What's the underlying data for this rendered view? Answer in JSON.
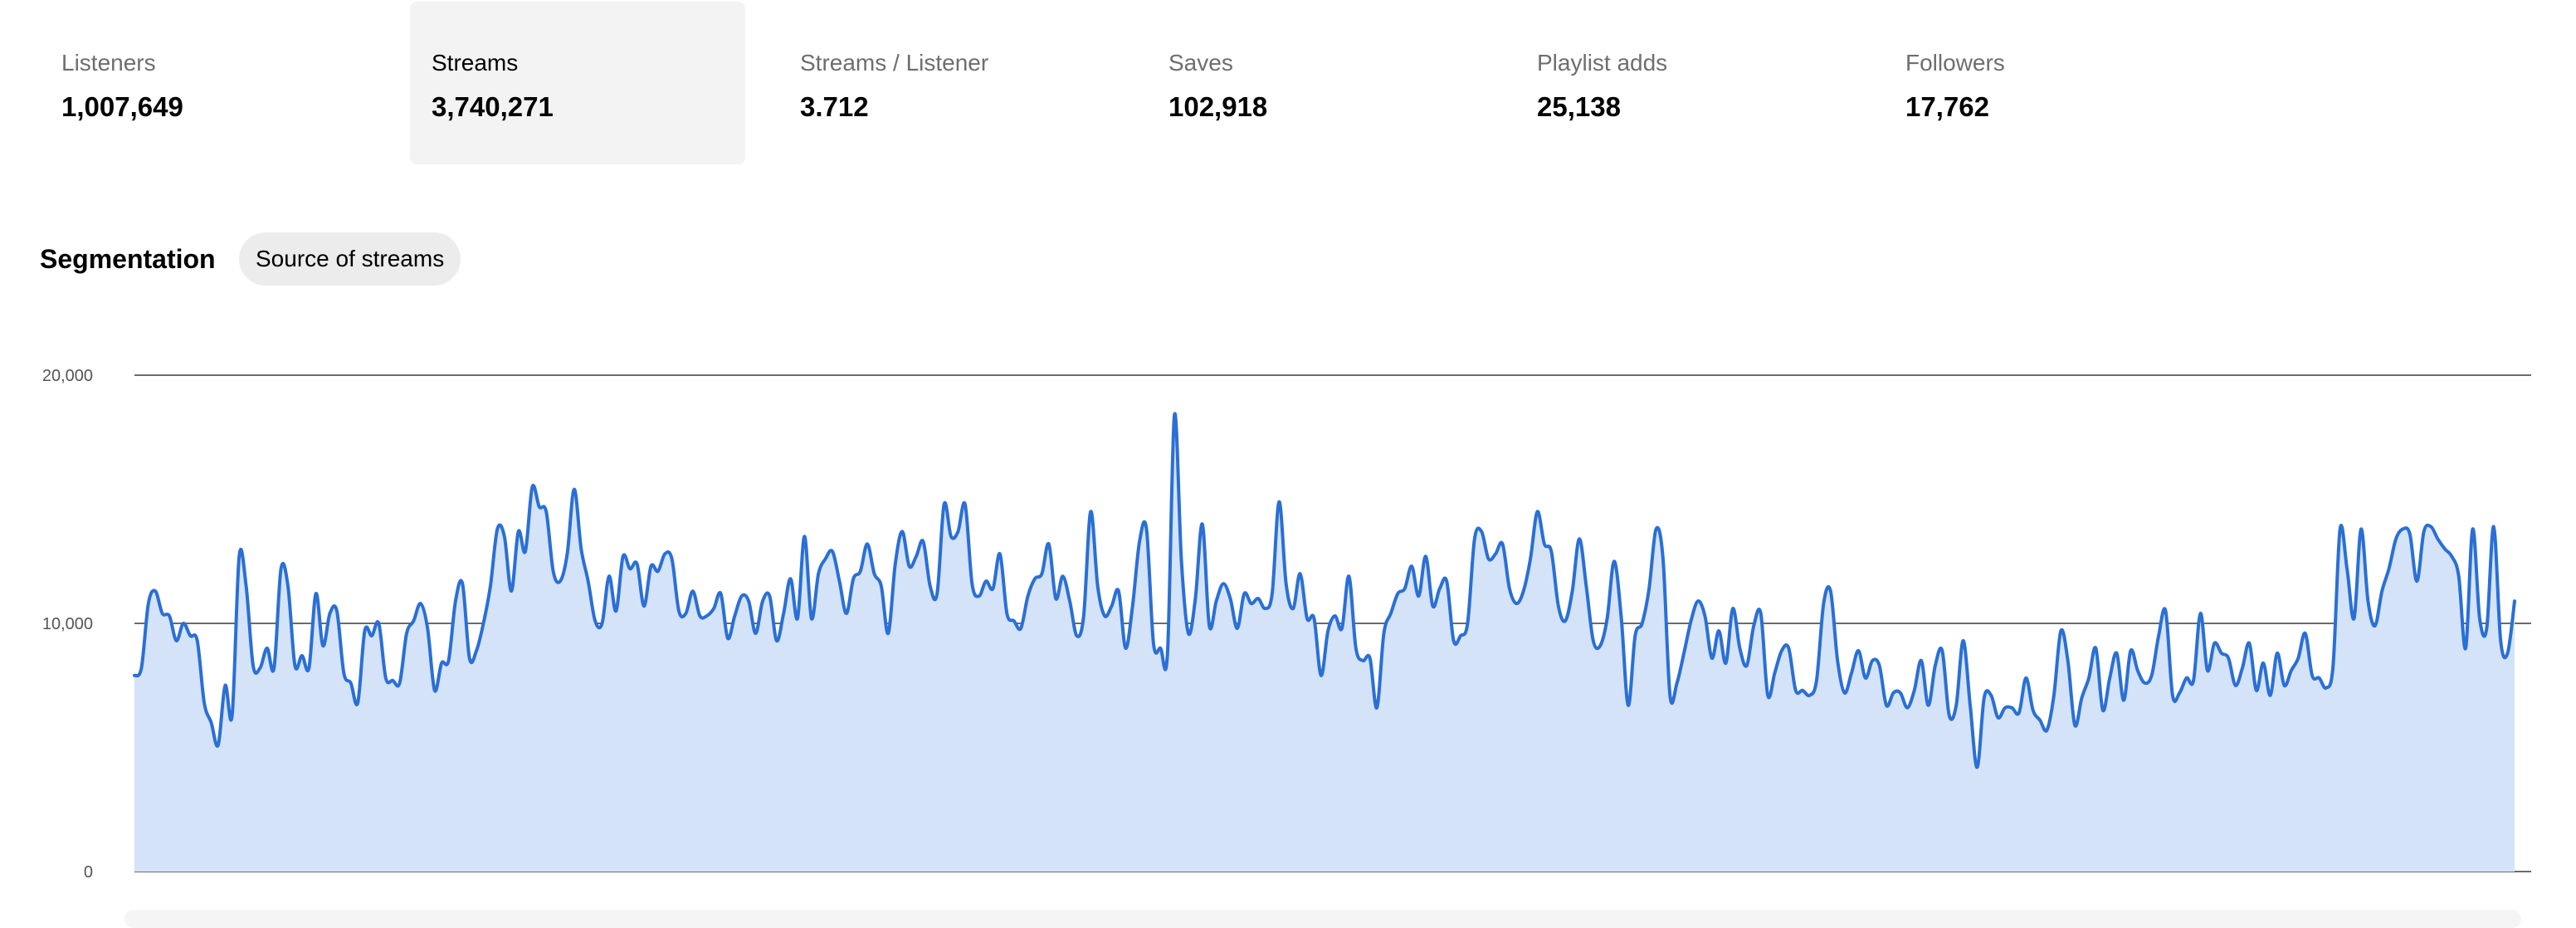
{
  "stats": [
    {
      "label": "Listeners",
      "value": "1,007,649",
      "active": false
    },
    {
      "label": "Streams",
      "value": "3,740,271",
      "active": true
    },
    {
      "label": "Streams / Listener",
      "value": "3.712",
      "active": false
    },
    {
      "label": "Saves",
      "value": "102,918",
      "active": false
    },
    {
      "label": "Playlist adds",
      "value": "25,138",
      "active": false
    },
    {
      "label": "Followers",
      "value": "17,762",
      "active": false
    }
  ],
  "segmentation": {
    "title": "Segmentation",
    "pill": "Source of streams"
  },
  "colors": {
    "line": "#2a6fd6",
    "fill": "#d4e3f8",
    "grid": "#6b6b6b",
    "active_tab_bg": "#f3f3f3"
  },
  "chart_data": {
    "type": "area",
    "ylim": [
      0,
      20000
    ],
    "yticks": [
      0,
      10000,
      20000
    ],
    "ytick_labels": [
      "0",
      "10,000",
      "20,000"
    ],
    "grid": true,
    "series": [
      {
        "values": [
          7900,
          8200,
          10800,
          11300,
          10400,
          10300,
          9300,
          10000,
          9500,
          9300,
          6800,
          6000,
          5100,
          7500,
          6300,
          12700,
          11500,
          8300,
          8200,
          9000,
          8200,
          12200,
          11500,
          8300,
          8700,
          8200,
          11200,
          9100,
          10400,
          10500,
          8000,
          7600,
          6800,
          9700,
          9500,
          10000,
          7800,
          7700,
          7600,
          9600,
          10100,
          10800,
          9800,
          7300,
          8400,
          8500,
          10900,
          11600,
          8600,
          8900,
          10000,
          11500,
          13800,
          13500,
          11300,
          13700,
          12900,
          15500,
          14700,
          14500,
          12100,
          11700,
          12800,
          15400,
          13000,
          11700,
          10100,
          10000,
          11900,
          10500,
          12700,
          12200,
          12400,
          10700,
          12300,
          12100,
          12800,
          12600,
          10500,
          10400,
          11300,
          10300,
          10300,
          10600,
          11200,
          9400,
          10300,
          11100,
          10900,
          9600,
          10900,
          11100,
          9300,
          10400,
          11800,
          10200,
          13500,
          10200,
          12000,
          12600,
          12900,
          11700,
          10400,
          11800,
          12100,
          13200,
          12000,
          11500,
          9600,
          12400,
          13700,
          12300,
          12700,
          13300,
          11500,
          11200,
          14800,
          13500,
          13700,
          14800,
          11600,
          11100,
          11700,
          11400,
          12800,
          10400,
          10100,
          9800,
          11100,
          11800,
          12000,
          13200,
          11000,
          11900,
          10900,
          9500,
          10300,
          14500,
          11500,
          10300,
          10700,
          11300,
          9000,
          10700,
          13300,
          13800,
          9200,
          9000,
          8800,
          18400,
          12500,
          9600,
          11000,
          14000,
          9900,
          10900,
          11600,
          11000,
          9800,
          11200,
          10800,
          11000,
          10600,
          11200,
          14900,
          11600,
          10600,
          12000,
          10200,
          10200,
          7900,
          9700,
          10300,
          9800,
          11900,
          9000,
          8500,
          8600,
          6600,
          9600,
          10400,
          11200,
          11400,
          12300,
          11100,
          12700,
          10700,
          11400,
          11700,
          9300,
          9500,
          10000,
          13400,
          13700,
          12600,
          12800,
          13200,
          11400,
          10800,
          11300,
          12600,
          14500,
          13200,
          12900,
          10700,
          10100,
          11300,
          13400,
          11500,
          9300,
          9100,
          10200,
          12500,
          10300,
          6700,
          9500,
          10000,
          11400,
          13800,
          12600,
          7100,
          7600,
          8800,
          10100,
          10900,
          10300,
          8600,
          9700,
          8400,
          10600,
          9000,
          8300,
          9900,
          10400,
          7100,
          8000,
          8900,
          9000,
          7300,
          7300,
          7100,
          7700,
          10800,
          11300,
          8500,
          7200,
          8000,
          8900,
          7800,
          8500,
          8300,
          6700,
          7200,
          7200,
          6600,
          7300,
          8500,
          6700,
          8300,
          8900,
          6300,
          6700,
          9300,
          6700,
          4200,
          7000,
          7100,
          6200,
          6600,
          6600,
          6400,
          7800,
          6500,
          6100,
          5700,
          7100,
          9700,
          8500,
          5900,
          7000,
          7800,
          9000,
          6500,
          7800,
          8800,
          6900,
          8900,
          8100,
          7600,
          7900,
          9500,
          10500,
          7100,
          7200,
          7800,
          7700,
          10400,
          8100,
          9200,
          8800,
          8600,
          7500,
          8200,
          9200,
          7300,
          8400,
          7100,
          8800,
          7500,
          8100,
          8600,
          9600,
          7900,
          7800,
          7400,
          8300,
          13800,
          12200,
          10200,
          13800,
          10900,
          9900,
          11300,
          12200,
          13400,
          13800,
          13600,
          11700,
          13700,
          13900,
          13400,
          13000,
          12700,
          11900,
          9000,
          13800,
          10200,
          9800,
          13900,
          9300,
          8800,
          10900
        ]
      }
    ]
  }
}
